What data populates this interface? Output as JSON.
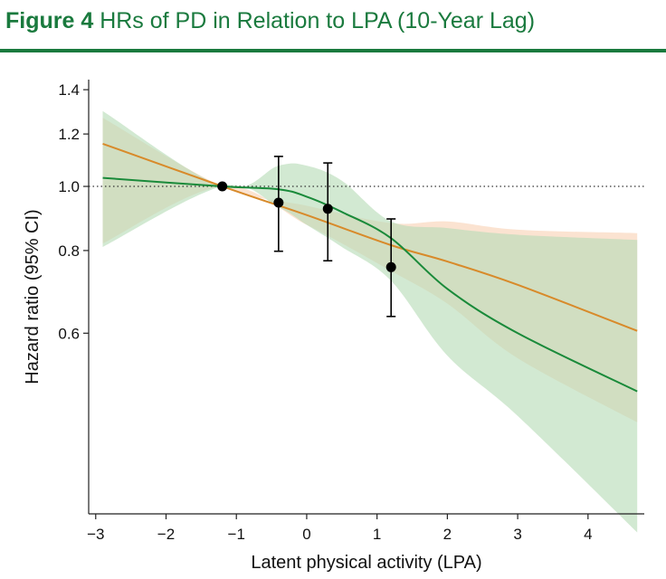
{
  "header": {
    "figure_label": "Figure 4",
    "caption": "HRs of PD in Relation to LPA (10-Year Lag)",
    "accent_color": "#1a7a3e"
  },
  "chart_data": {
    "type": "line",
    "xlabel": "Latent physical activity (LPA)",
    "ylabel": "Hazard ratio (95% CI)",
    "xlim": [
      -3.1,
      4.8
    ],
    "ylim": [
      0.32,
      1.45
    ],
    "y_scale": "log",
    "x_ticks": [
      -3,
      -2,
      -1,
      0,
      1,
      2,
      3,
      4
    ],
    "x_tick_labels": [
      "−3",
      "−2",
      "−1",
      "0",
      "1",
      "2",
      "3",
      "4"
    ],
    "y_ticks": [
      0.6,
      0.8,
      1.0,
      1.2,
      1.4
    ],
    "y_tick_labels": [
      "0.6",
      "0.8",
      "1.0",
      "1.2",
      "1.4"
    ],
    "grid": false,
    "reference_line": {
      "y": 1.0,
      "style": "dotted"
    },
    "series": [
      {
        "kind": "line",
        "color": "#d88a2a",
        "band_color": "#f8d2b4",
        "x": [
          -2.9,
          -1.2,
          0.0,
          1.2,
          2.0,
          3.0,
          4.7
        ],
        "y": [
          1.16,
          1.0,
          0.905,
          0.815,
          0.77,
          0.71,
          0.605
        ],
        "ci_lower": [
          0.82,
          1.0,
          0.875,
          0.745,
          0.665,
          0.55,
          0.44
        ],
        "ci_upper": [
          1.27,
          1.0,
          0.935,
          0.88,
          0.885,
          0.86,
          0.85
        ]
      },
      {
        "kind": "line",
        "color": "#1a8a3a",
        "band_color": "#b6dcb6",
        "x": [
          -2.9,
          -1.2,
          -0.4,
          0.0,
          0.5,
          1.2,
          2.0,
          3.0,
          4.7
        ],
        "y": [
          1.03,
          1.0,
          0.99,
          0.965,
          0.915,
          0.835,
          0.7,
          0.6,
          0.49
        ],
        "ci_lower": [
          0.81,
          1.0,
          0.93,
          0.875,
          0.81,
          0.72,
          0.555,
          0.45,
          0.3
        ],
        "ci_upper": [
          1.3,
          1.0,
          1.075,
          1.075,
          1.02,
          0.885,
          0.865,
          0.845,
          0.83
        ]
      },
      {
        "kind": "points",
        "color": "#000000",
        "x": [
          -1.2,
          -0.4,
          0.3,
          1.2
        ],
        "y": [
          1.0,
          0.945,
          0.925,
          0.755
        ],
        "ci_lower": [
          1.0,
          0.798,
          0.772,
          0.636
        ],
        "ci_upper": [
          1.0,
          1.11,
          1.085,
          0.893
        ]
      }
    ]
  }
}
